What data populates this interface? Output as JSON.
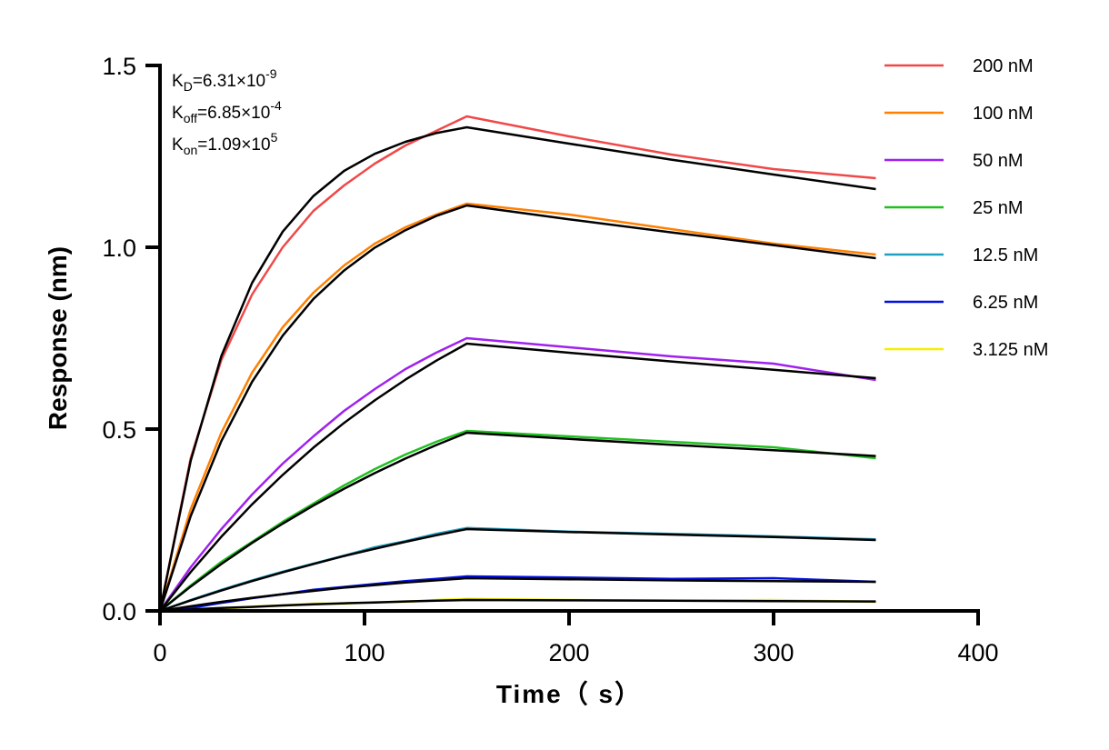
{
  "chart_data": {
    "type": "line",
    "xlabel": "Time（ s）",
    "ylabel": "Response (nm)",
    "xlim": [
      0,
      400
    ],
    "ylim": [
      0,
      1.5
    ],
    "xticks": [
      "0",
      "100",
      "200",
      "300",
      "400"
    ],
    "yticks": [
      "0.0",
      "0.5",
      "1.0",
      "1.5"
    ],
    "xtick_values": [
      0,
      100,
      200,
      300,
      400
    ],
    "ytick_values": [
      0,
      0.5,
      1.0,
      1.5
    ],
    "grid": false,
    "legend_position": "right",
    "annotations": {
      "kd": {
        "label": "K",
        "sub": "D",
        "value": "=6.31×10",
        "exp": "-9"
      },
      "koff": {
        "label": "K",
        "sub": "off",
        "value": "=6.85×10",
        "exp": "-4"
      },
      "kon": {
        "label": "K",
        "sub": "on",
        "value": "=1.09×10",
        "exp": "5"
      }
    },
    "fit_color": "#000000",
    "x": [
      0,
      15,
      30,
      45,
      60,
      75,
      90,
      105,
      120,
      135,
      150,
      200,
      250,
      300,
      350
    ],
    "series": [
      {
        "name": "200 nM",
        "color": "#F04848",
        "values": [
          0,
          0.42,
          0.69,
          0.87,
          1.0,
          1.1,
          1.17,
          1.23,
          1.28,
          1.32,
          1.36,
          1.305,
          1.255,
          1.215,
          1.19
        ],
        "fit": [
          0,
          0.413,
          0.701,
          0.902,
          1.043,
          1.141,
          1.21,
          1.257,
          1.29,
          1.314,
          1.33,
          1.285,
          1.241,
          1.2,
          1.16
        ]
      },
      {
        "name": "100 nM",
        "color": "#FF8000",
        "values": [
          0,
          0.28,
          0.49,
          0.655,
          0.78,
          0.875,
          0.95,
          1.01,
          1.055,
          1.09,
          1.12,
          1.09,
          1.05,
          1.01,
          0.98
        ],
        "fit": [
          0,
          0.261,
          0.467,
          0.63,
          0.757,
          0.858,
          0.936,
          0.999,
          1.047,
          1.086,
          1.115,
          1.077,
          1.041,
          1.006,
          0.97
        ]
      },
      {
        "name": "50 nM",
        "color": "#A020F0",
        "values": [
          0,
          0.12,
          0.225,
          0.32,
          0.405,
          0.48,
          0.55,
          0.61,
          0.665,
          0.71,
          0.75,
          0.725,
          0.7,
          0.68,
          0.635
        ],
        "fit": [
          0,
          0.107,
          0.204,
          0.293,
          0.374,
          0.449,
          0.517,
          0.579,
          0.636,
          0.688,
          0.735,
          0.71,
          0.686,
          0.663,
          0.64
        ]
      },
      {
        "name": "25 nM",
        "color": "#20C020",
        "values": [
          0,
          0.07,
          0.135,
          0.19,
          0.245,
          0.295,
          0.345,
          0.39,
          0.43,
          0.465,
          0.495,
          0.48,
          0.465,
          0.45,
          0.42
        ],
        "fit": [
          0,
          0.067,
          0.129,
          0.187,
          0.24,
          0.29,
          0.336,
          0.379,
          0.419,
          0.456,
          0.49,
          0.473,
          0.457,
          0.442,
          0.426
        ]
      },
      {
        "name": "12.5 nM",
        "color": "#20A0C0",
        "values": [
          0,
          0.03,
          0.058,
          0.084,
          0.108,
          0.13,
          0.152,
          0.175,
          0.192,
          0.212,
          0.228,
          0.218,
          0.212,
          0.205,
          0.197
        ],
        "fit": [
          0,
          0.029,
          0.056,
          0.082,
          0.106,
          0.129,
          0.151,
          0.171,
          0.19,
          0.208,
          0.225,
          0.217,
          0.21,
          0.203,
          0.195
        ]
      },
      {
        "name": "6.25 nM",
        "color": "#0010E0",
        "values": [
          0,
          0.008,
          0.022,
          0.035,
          0.046,
          0.058,
          0.066,
          0.074,
          0.082,
          0.088,
          0.095,
          0.092,
          0.088,
          0.09,
          0.08
        ],
        "fit": [
          0,
          0.013,
          0.025,
          0.036,
          0.046,
          0.055,
          0.064,
          0.071,
          0.078,
          0.084,
          0.09,
          0.087,
          0.084,
          0.082,
          0.08
        ]
      },
      {
        "name": "3.125 nM",
        "color": "#F0F000",
        "values": [
          0,
          0.0,
          0.005,
          0.012,
          0.015,
          0.02,
          0.02,
          0.024,
          0.025,
          0.03,
          0.033,
          0.03,
          0.028,
          0.03,
          0.025
        ],
        "fit": [
          0,
          0.004,
          0.008,
          0.011,
          0.015,
          0.018,
          0.021,
          0.023,
          0.026,
          0.028,
          0.03,
          0.029,
          0.028,
          0.027,
          0.026
        ]
      }
    ]
  }
}
